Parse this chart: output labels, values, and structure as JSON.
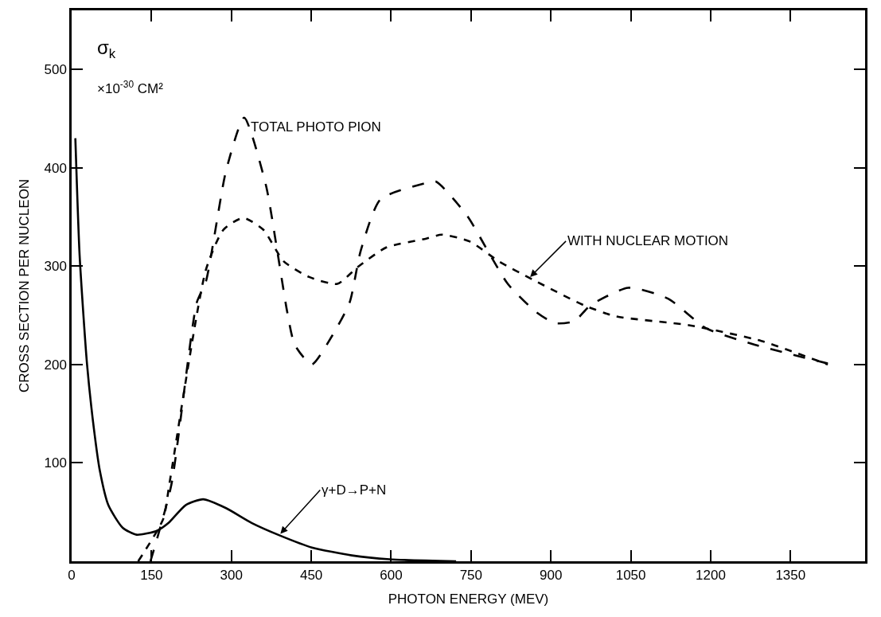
{
  "chart_data": {
    "type": "line",
    "xlabel": "PHOTON ENERGY (MEV)",
    "ylabel": "CROSS SECTION PER NUCLEON",
    "xlim": [
      0,
      1490
    ],
    "ylim": [
      0,
      560
    ],
    "xticks": [
      0,
      150,
      300,
      450,
      600,
      750,
      900,
      1050,
      1200,
      1350
    ],
    "yticks": [
      100,
      200,
      300,
      400,
      500
    ],
    "marker": "none",
    "series": [
      {
        "color": "#000000",
        "line_style": "dashed",
        "x": [
          148,
          187,
          235,
          252,
          290,
          324,
          365,
          386,
          405,
          419,
          451,
          489,
          522,
          543,
          580,
          662,
          684,
          743,
          781,
          819,
          873,
          908,
          944,
          974,
          1045,
          1120,
          1191,
          1284,
          1420
        ],
        "values": [
          0,
          77,
          263,
          284,
          397,
          451,
          382,
          316,
          253,
          220,
          200,
          229,
          263,
          316,
          368,
          384,
          386,
          351,
          316,
          282,
          253,
          242,
          244,
          260,
          278,
          267,
          237,
          220,
          201
        ]
      },
      {
        "color": "#000000",
        "line_style": "dashed",
        "x": [
          125,
          172,
          184,
          252,
          285,
          322,
          360,
          398,
          446,
          499,
          537,
          591,
          666,
          695,
          748,
          802,
          867,
          963,
          1022,
          1159,
          1295,
          1420
        ],
        "values": [
          0,
          43,
          80,
          296,
          337,
          349,
          337,
          305,
          289,
          282,
          299,
          319,
          328,
          332,
          325,
          305,
          286,
          260,
          249,
          240,
          224,
          200
        ]
      },
      {
        "color": "#000000",
        "line_style": "solid",
        "x": [
          7,
          15,
          29,
          42,
          53,
          69,
          96,
          122,
          160,
          182,
          214,
          247,
          290,
          338,
          392,
          451,
          526,
          597,
          722
        ],
        "values": [
          430,
          311,
          200,
          134,
          92,
          57,
          34,
          27,
          31,
          39,
          57,
          63,
          54,
          39,
          26,
          14,
          6,
          2,
          0
        ]
      }
    ],
    "annotations": [
      "σ$_{k}$",
      "×10$^{-30}$ CM²",
      {
        "text": "TOTAL PHOTO PION",
        "x": 324,
        "y": 451
      },
      {
        "text": "WITH NUCLEAR MOTION",
        "x": 861,
        "y": 289
      },
      {
        "text": "γ+D→P+N",
        "x": 392,
        "y": 28
      }
    ]
  }
}
